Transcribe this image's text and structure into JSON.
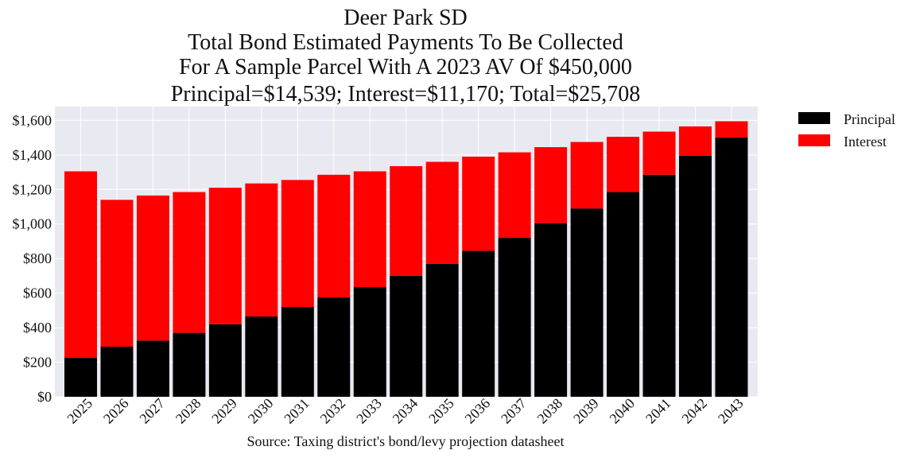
{
  "chart_data": {
    "type": "bar",
    "stacked": true,
    "title": [
      "Deer Park SD",
      "Total Bond Estimated Payments To Be Collected",
      "For A Sample Parcel With A 2023 AV Of $450,000",
      "Principal=$14,539; Interest=$11,170; Total=$25,708"
    ],
    "categories": [
      "2025",
      "2026",
      "2027",
      "2028",
      "2029",
      "2030",
      "2031",
      "2032",
      "2033",
      "2034",
      "2035",
      "2036",
      "2037",
      "2038",
      "2039",
      "2040",
      "2041",
      "2042",
      "2043"
    ],
    "series": [
      {
        "name": "Principal",
        "color": "#000000",
        "values": [
          225,
          290,
          325,
          370,
          420,
          465,
          520,
          575,
          635,
          700,
          770,
          845,
          920,
          1005,
          1090,
          1185,
          1285,
          1395,
          1500
        ]
      },
      {
        "name": "Interest",
        "color": "#ff0000",
        "values": [
          1080,
          850,
          840,
          815,
          790,
          770,
          735,
          710,
          670,
          635,
          590,
          545,
          495,
          440,
          385,
          320,
          250,
          170,
          95
        ]
      }
    ],
    "ylim": [
      0,
      1680
    ],
    "yticks": [
      0,
      200,
      400,
      600,
      800,
      1000,
      1200,
      1400,
      1600
    ],
    "ytick_labels": [
      "$0",
      "$200",
      "$400",
      "$600",
      "$800",
      "$1,000",
      "$1,200",
      "$1,400",
      "$1,600"
    ],
    "grid": true,
    "legend_position": "right-top",
    "xlabel": "",
    "ylabel": "",
    "source": "Source: Taxing district's bond/levy projection datasheet",
    "plot_background": "#e9eaf1"
  }
}
